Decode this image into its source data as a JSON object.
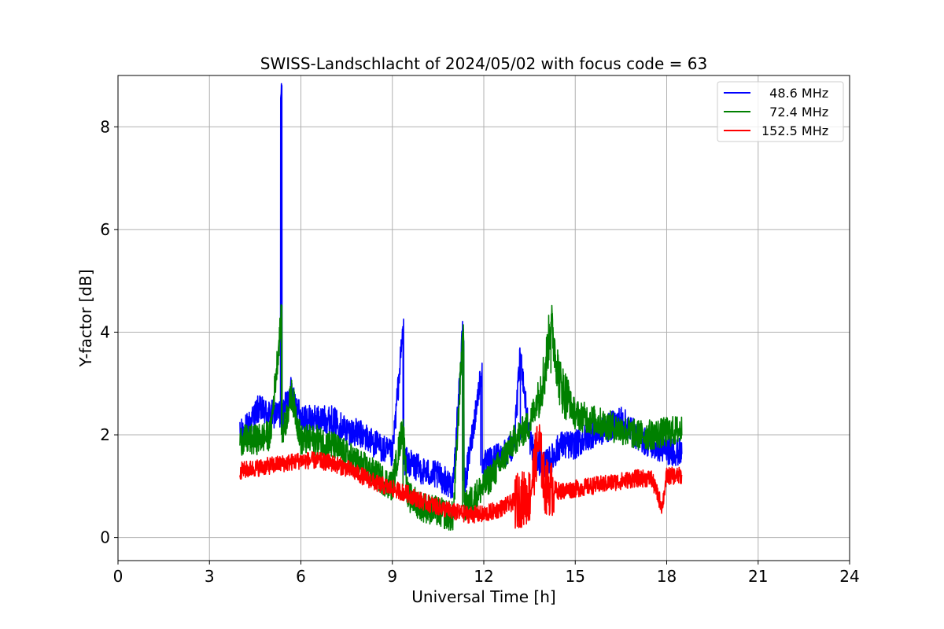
{
  "chart_data": {
    "type": "line",
    "title": "SWISS-Landschlacht of 2024/05/02 with focus code = 63",
    "xlabel": "Universal Time [h]",
    "ylabel": "Y-factor [dB]",
    "xlim": [
      0,
      24
    ],
    "ylim": [
      -0.45,
      9.0
    ],
    "xticks": [
      0,
      3,
      6,
      9,
      12,
      15,
      18,
      21,
      24
    ],
    "yticks": [
      0,
      2,
      4,
      6,
      8
    ],
    "grid": true,
    "legend_position": "top-right",
    "series": [
      {
        "name": "  48.6 MHz",
        "color": "#0000ff",
        "points": [
          [
            4.0,
            2.0
          ],
          [
            4.3,
            2.2
          ],
          [
            4.6,
            2.5
          ],
          [
            5.0,
            2.4
          ],
          [
            5.3,
            2.4
          ],
          [
            5.36,
            8.6
          ],
          [
            5.4,
            2.4
          ],
          [
            5.7,
            2.9
          ],
          [
            6.0,
            2.3
          ],
          [
            6.5,
            2.3
          ],
          [
            7.0,
            2.3
          ],
          [
            7.5,
            2.1
          ],
          [
            8.0,
            2.0
          ],
          [
            8.5,
            1.8
          ],
          [
            9.0,
            1.6
          ],
          [
            9.35,
            4.05
          ],
          [
            9.4,
            1.5
          ],
          [
            10.0,
            1.3
          ],
          [
            10.5,
            1.2
          ],
          [
            11.0,
            1.0
          ],
          [
            11.3,
            3.95
          ],
          [
            11.4,
            1.1
          ],
          [
            11.9,
            3.15
          ],
          [
            12.0,
            1.4
          ],
          [
            12.5,
            1.6
          ],
          [
            13.0,
            1.8
          ],
          [
            13.2,
            3.6
          ],
          [
            13.5,
            1.9
          ],
          [
            13.8,
            1.5
          ],
          [
            14.0,
            1.4
          ],
          [
            14.3,
            1.6
          ],
          [
            14.5,
            1.8
          ],
          [
            15.0,
            1.8
          ],
          [
            15.5,
            2.0
          ],
          [
            16.0,
            2.1
          ],
          [
            16.5,
            2.3
          ],
          [
            17.0,
            2.0
          ],
          [
            17.5,
            1.8
          ],
          [
            18.0,
            1.7
          ],
          [
            18.5,
            1.65
          ]
        ]
      },
      {
        "name": "  72.4 MHz",
        "color": "#008000",
        "points": [
          [
            4.0,
            1.9
          ],
          [
            4.5,
            1.9
          ],
          [
            5.0,
            2.0
          ],
          [
            5.36,
            4.3
          ],
          [
            5.4,
            2.0
          ],
          [
            5.7,
            2.8
          ],
          [
            6.0,
            1.9
          ],
          [
            6.5,
            1.9
          ],
          [
            7.0,
            1.8
          ],
          [
            7.5,
            1.6
          ],
          [
            8.0,
            1.4
          ],
          [
            8.5,
            1.2
          ],
          [
            9.0,
            1.0
          ],
          [
            9.35,
            2.2
          ],
          [
            9.5,
            0.8
          ],
          [
            10.0,
            0.6
          ],
          [
            10.5,
            0.5
          ],
          [
            11.0,
            0.4
          ],
          [
            11.3,
            3.9
          ],
          [
            11.4,
            0.6
          ],
          [
            12.0,
            1.0
          ],
          [
            12.5,
            1.4
          ],
          [
            13.0,
            1.9
          ],
          [
            13.5,
            2.2
          ],
          [
            14.0,
            3.2
          ],
          [
            14.2,
            4.2
          ],
          [
            14.5,
            3.0
          ],
          [
            15.0,
            2.4
          ],
          [
            15.5,
            2.3
          ],
          [
            16.0,
            2.2
          ],
          [
            16.5,
            2.1
          ],
          [
            17.0,
            2.0
          ],
          [
            17.5,
            2.0
          ],
          [
            18.0,
            2.05
          ],
          [
            18.5,
            2.1
          ]
        ]
      },
      {
        "name": "152.5 MHz",
        "color": "#ff0000",
        "points": [
          [
            4.0,
            1.3
          ],
          [
            4.5,
            1.35
          ],
          [
            5.0,
            1.4
          ],
          [
            5.5,
            1.45
          ],
          [
            6.0,
            1.5
          ],
          [
            6.5,
            1.5
          ],
          [
            7.0,
            1.45
          ],
          [
            7.5,
            1.35
          ],
          [
            8.0,
            1.2
          ],
          [
            8.5,
            1.05
          ],
          [
            9.0,
            0.95
          ],
          [
            9.5,
            0.85
          ],
          [
            10.0,
            0.7
          ],
          [
            10.5,
            0.6
          ],
          [
            11.0,
            0.5
          ],
          [
            11.5,
            0.45
          ],
          [
            12.0,
            0.45
          ],
          [
            12.5,
            0.55
          ],
          [
            13.0,
            0.7
          ],
          [
            13.5,
            0.8
          ],
          [
            13.8,
            1.9
          ],
          [
            14.0,
            1.0
          ],
          [
            14.5,
            0.9
          ],
          [
            15.0,
            0.95
          ],
          [
            15.5,
            1.0
          ],
          [
            16.0,
            1.05
          ],
          [
            16.5,
            1.1
          ],
          [
            17.0,
            1.15
          ],
          [
            17.5,
            1.15
          ],
          [
            17.85,
            0.6
          ],
          [
            18.0,
            1.2
          ],
          [
            18.5,
            1.2
          ]
        ]
      }
    ]
  }
}
